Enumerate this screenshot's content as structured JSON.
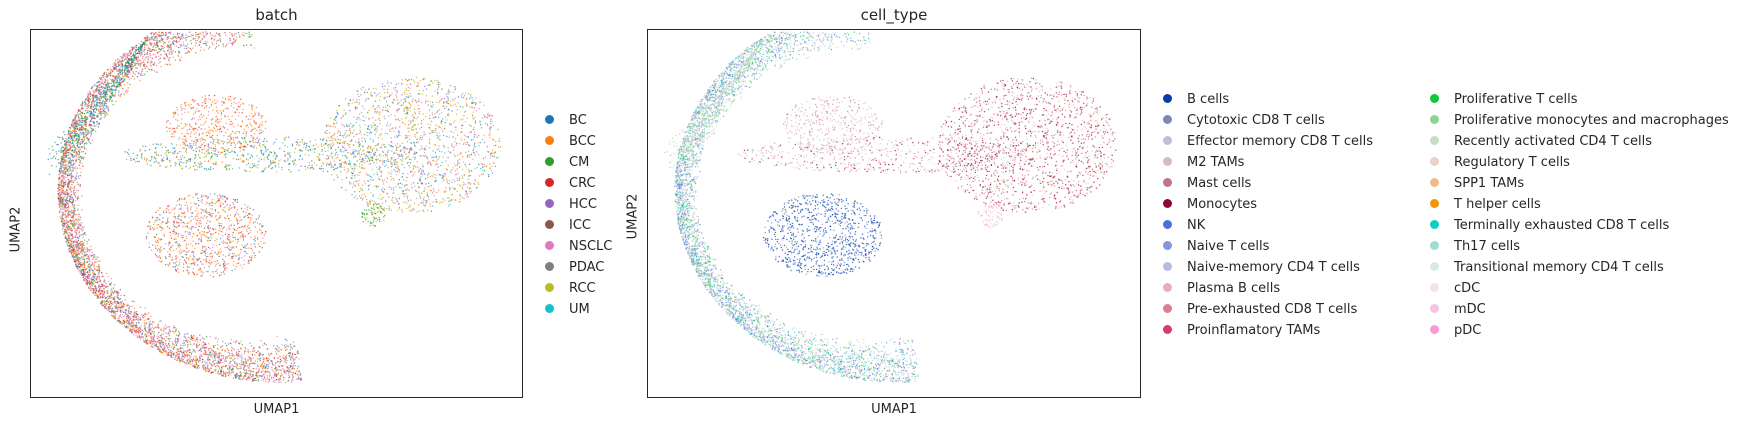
{
  "chart_data": [
    {
      "type": "scatter",
      "title": "batch",
      "xlabel": "UMAP1",
      "ylabel": "UMAP2",
      "grid": false,
      "legend_placement": "right",
      "series": [
        {
          "name": "BC",
          "color": "#1f77b4"
        },
        {
          "name": "BCC",
          "color": "#ff7f0e"
        },
        {
          "name": "CM",
          "color": "#2ca02c"
        },
        {
          "name": "CRC",
          "color": "#d62728"
        },
        {
          "name": "HCC",
          "color": "#9467bd"
        },
        {
          "name": "ICC",
          "color": "#8c564b"
        },
        {
          "name": "NSCLC",
          "color": "#e377c2"
        },
        {
          "name": "PDAC",
          "color": "#7f7f7f"
        },
        {
          "name": "RCC",
          "color": "#bcbd22"
        },
        {
          "name": "UM",
          "color": "#17becf"
        }
      ]
    },
    {
      "type": "scatter",
      "title": "cell_type",
      "xlabel": "UMAP1",
      "ylabel": "UMAP2",
      "grid": false,
      "legend_placement": "right",
      "series": [
        {
          "name": "B cells",
          "color": "#023fa5"
        },
        {
          "name": "Cytotoxic CD8 T cells",
          "color": "#7d87b9"
        },
        {
          "name": "Effector memory CD8 T cells",
          "color": "#bec1d4"
        },
        {
          "name": "M2 TAMs",
          "color": "#d6bcc0"
        },
        {
          "name": "Mast cells",
          "color": "#bb7784"
        },
        {
          "name": "Monocytes",
          "color": "#8e063b"
        },
        {
          "name": "NK",
          "color": "#4a6fe3"
        },
        {
          "name": "Naive T cells",
          "color": "#8595e1"
        },
        {
          "name": "Naive-memory CD4 T cells",
          "color": "#b5bbe3"
        },
        {
          "name": "Plasma B cells",
          "color": "#e6afb9"
        },
        {
          "name": "Pre-exhausted CD8 T cells",
          "color": "#e07b91"
        },
        {
          "name": "Proinflamatory TAMs",
          "color": "#d33f6a"
        },
        {
          "name": "Proliferative T cells",
          "color": "#11c638"
        },
        {
          "name": "Proliferative monocytes and macrophages",
          "color": "#8dd593"
        },
        {
          "name": "Recently activated CD4 T cells",
          "color": "#c6dec7"
        },
        {
          "name": "Regulatory T cells",
          "color": "#ead3c6"
        },
        {
          "name": "SPP1 TAMs",
          "color": "#f0b98d"
        },
        {
          "name": "T helper cells",
          "color": "#ef9708"
        },
        {
          "name": "Terminally exhausted CD8 T cells",
          "color": "#0fcfc0"
        },
        {
          "name": "Th17 cells",
          "color": "#9cded6"
        },
        {
          "name": "Transitional memory CD4 T cells",
          "color": "#d5eae7"
        },
        {
          "name": "cDC",
          "color": "#f3e1eb"
        },
        {
          "name": "mDC",
          "color": "#f6c4e1"
        },
        {
          "name": "pDC",
          "color": "#f79cd4"
        }
      ]
    }
  ]
}
